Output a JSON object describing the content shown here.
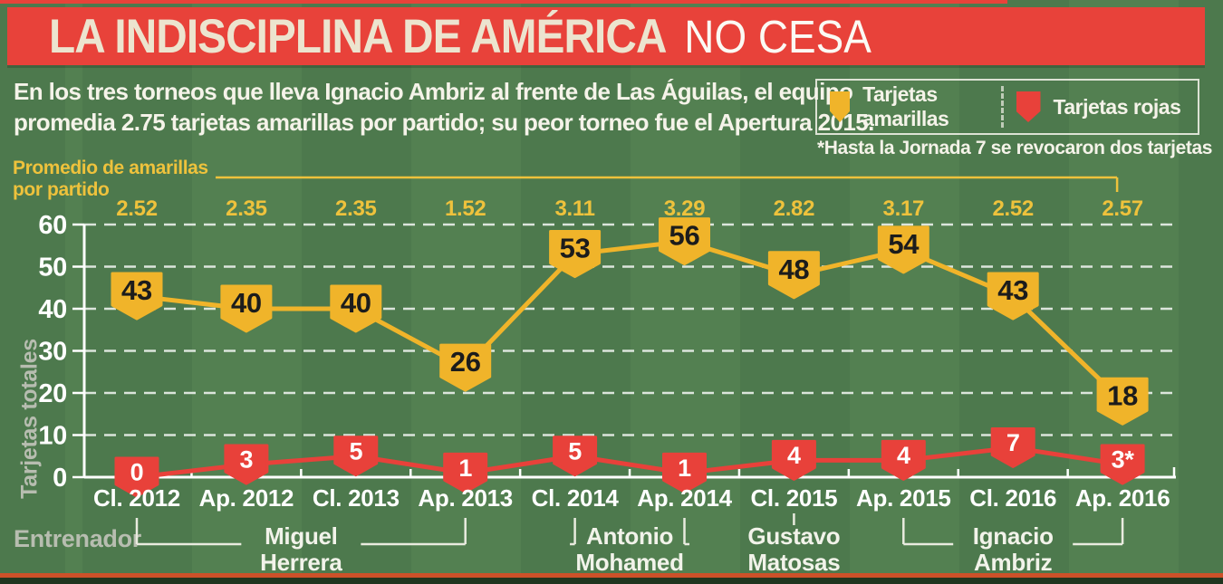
{
  "header": {
    "title_strong": "LA INDISCIPLINA DE AMÉRICA",
    "title_light": "NO CESA"
  },
  "subtitle": {
    "line1": "En los tres torneos que lleva Ignacio Ambriz al frente de Las Águilas, el equipo",
    "line2": "promedia 2.75 tarjetas amarillas por partido; su peor torneo fue el Apertura 2015."
  },
  "legend": {
    "yellow_label": "Tarjetas amarillas",
    "red_label": "Tarjetas rojas"
  },
  "footnote": "*Hasta la Jornada 7 se revocaron dos tarjetas",
  "avg_header": {
    "line1": "Promedio de amarillas",
    "line2": "por partido"
  },
  "ylabel": "Tarjetas totales",
  "coach_label": "Entrenador",
  "colors": {
    "background_green": "#4d7a4e",
    "background_green_light": "#538051",
    "band_red": "#e8423a",
    "yellow": "#f0b42a",
    "yellow_text": "#eec23c",
    "red": "#e8413a",
    "cream": "#ece4cf",
    "white_text": "#f5f3e9",
    "gray_label": "#b7bdb0",
    "bottom_rule": "#cd5129",
    "bottom_dark": "#20351f",
    "marker_number_dark": "#1c1c1c"
  },
  "chart_data": {
    "type": "line",
    "title": "LA INDISCIPLINA DE AMÉRICA NO CESA",
    "ylabel": "Tarjetas totales",
    "ylim": [
      0,
      60
    ],
    "yticks": [
      0,
      10,
      20,
      30,
      40,
      50,
      60
    ],
    "grid": "dashed horizontal",
    "categories": [
      "Cl. 2012",
      "Ap. 2012",
      "Cl. 2013",
      "Ap. 2013",
      "Cl. 2014",
      "Ap. 2014",
      "Cl. 2015",
      "Ap. 2015",
      "Cl. 2016",
      "Ap. 2016"
    ],
    "series": [
      {
        "name": "Tarjetas amarillas",
        "values": [
          43,
          40,
          40,
          26,
          53,
          56,
          48,
          54,
          43,
          18
        ],
        "labels": [
          "43",
          "40",
          "40",
          "26",
          "53",
          "56",
          "48",
          "54",
          "43",
          "18"
        ]
      },
      {
        "name": "Tarjetas rojas",
        "values": [
          0,
          3,
          5,
          1,
          5,
          1,
          4,
          4,
          7,
          3
        ],
        "labels": [
          "0",
          "3",
          "5",
          "1",
          "5",
          "1",
          "4",
          "4",
          "7",
          "3*"
        ]
      }
    ],
    "averages_per_match": [
      "2.52",
      "2.35",
      "2.35",
      "1.52",
      "3.11",
      "3.29",
      "2.82",
      "3.17",
      "2.52",
      "2.57"
    ],
    "coaches": [
      {
        "line1": "Miguel",
        "line2": "Herrera",
        "start_index": 0,
        "end_index": 3
      },
      {
        "line1": "Antonio",
        "line2": "Mohamed",
        "start_index": 4,
        "end_index": 5
      },
      {
        "line1": "Gustavo",
        "line2": "Matosas",
        "start_index": 6,
        "end_index": 6
      },
      {
        "line1": "Ignacio",
        "line2": "Ambriz",
        "start_index": 7,
        "end_index": 9
      }
    ]
  }
}
